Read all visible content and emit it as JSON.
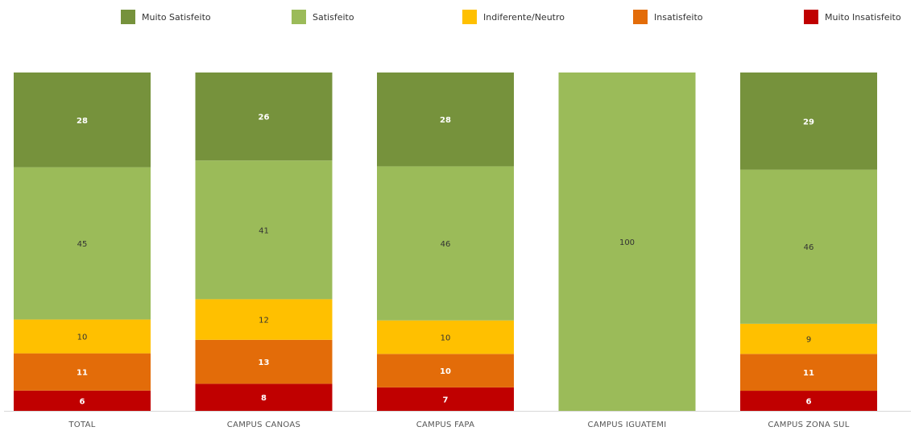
{
  "chart_data": {
    "type": "bar",
    "stacked": true,
    "percent_stacked": true,
    "categories": [
      "TOTAL",
      "CAMPUS CANOAS",
      "CAMPUS FAPA",
      "CAMPUS IGUATEMI",
      "CAMPUS ZONA SUL"
    ],
    "series": [
      {
        "name": "Muito Insatisfeito",
        "color": "#c00000",
        "label_color": "#ffffff",
        "values": [
          6,
          8,
          7,
          0,
          6
        ]
      },
      {
        "name": "Insatisfeito",
        "color": "#e36c09",
        "label_color": "#ffffff",
        "values": [
          11,
          13,
          10,
          0,
          11
        ]
      },
      {
        "name": "Indiferente/Neutro",
        "color": "#ffc000",
        "label_color": "#333333",
        "values": [
          10,
          12,
          10,
          0,
          9
        ]
      },
      {
        "name": "Satisfeito",
        "color": "#9bbb59",
        "label_color": "#333333",
        "values": [
          45,
          41,
          46,
          100,
          46
        ]
      },
      {
        "name": "Muito Satisfeito",
        "color": "#76923c",
        "label_color": "#ffffff",
        "values": [
          28,
          26,
          28,
          0,
          29
        ]
      }
    ],
    "legend_order": [
      "Muito Satisfeito",
      "Satisfeito",
      "Indiferente/Neutro",
      "Insatisfeito",
      "Muito Insatisfeito"
    ],
    "legend_position": "top",
    "ylim": [
      0,
      100
    ],
    "grid": false,
    "title": "",
    "xlabel": "",
    "ylabel": ""
  }
}
